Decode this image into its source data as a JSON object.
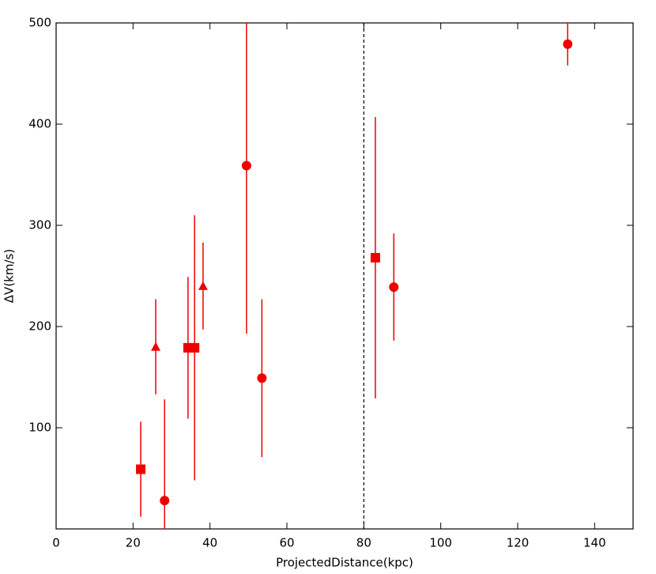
{
  "chart_data": {
    "type": "scatter",
    "xlabel": "ProjectedDistance(kpc)",
    "ylabel": "ΔV(km/s)",
    "xlim": [
      0,
      150
    ],
    "ylim": [
      0,
      500
    ],
    "xticks": [
      0,
      20,
      40,
      60,
      80,
      100,
      120,
      140
    ],
    "yticks": [
      100,
      200,
      300,
      400,
      500
    ],
    "vlines": [
      80
    ],
    "series": [
      {
        "marker": "square",
        "color": "#ee0000",
        "x": [
          22,
          34.3,
          36,
          83
        ],
        "values": [
          59,
          179,
          179,
          268
        ],
        "errors": [
          47,
          70,
          131,
          139
        ]
      },
      {
        "marker": "circle",
        "color": "#ee0000",
        "x": [
          28.2,
          49.5,
          53.5,
          87.8,
          133
        ],
        "values": [
          28,
          359,
          149,
          239,
          479
        ],
        "errors": [
          100,
          166,
          78,
          53,
          21
        ]
      },
      {
        "marker": "triangle",
        "color": "#ee0000",
        "x": [
          25.9,
          38.2
        ],
        "values": [
          180,
          240
        ],
        "errors": [
          47,
          43
        ]
      }
    ]
  }
}
